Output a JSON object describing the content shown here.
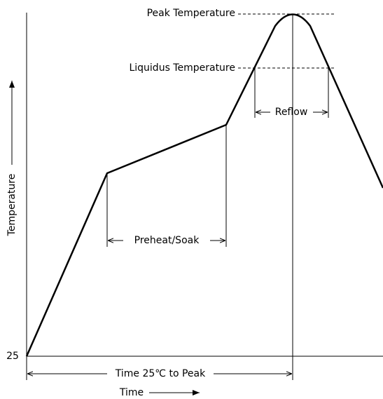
{
  "labels": {
    "peak": "Peak Temperature",
    "liquidus": "Liquidus Temperature",
    "reflow": "Reflow",
    "preheat": "Preheat/Soak",
    "time_to_peak": "Time 25℃ to Peak",
    "x_axis": "Time",
    "y_axis": "Temperature",
    "y_origin": "25"
  }
}
